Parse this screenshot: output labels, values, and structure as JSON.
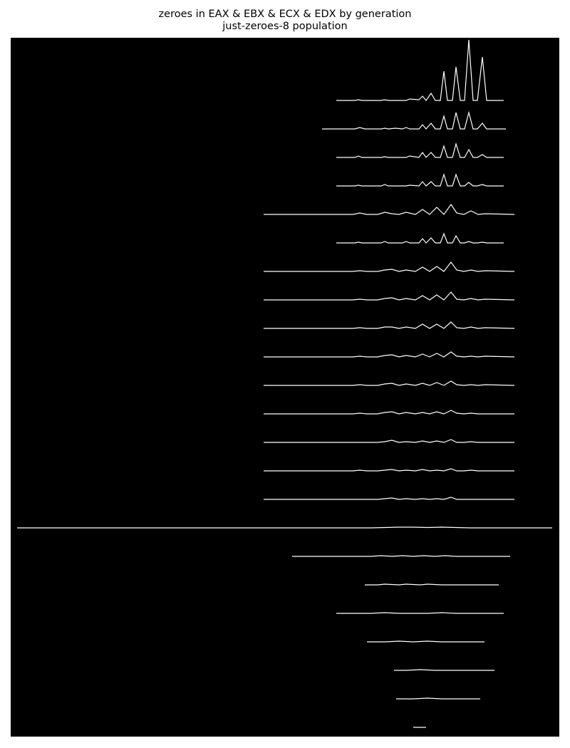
{
  "chart_data": {
    "type": "line",
    "title": "zeroes in EAX & EBX & ECX & EDX by generation",
    "subtitle": "just-zeroes-8 population",
    "xlabel": "",
    "ylabel": "",
    "background": "#000000",
    "line_color": "#ffffff",
    "grid": false,
    "legend": "none",
    "xlim": [
      0,
      800
    ],
    "ridge_spacing": 40,
    "spike_scale": 1,
    "series": [
      {
        "x": [
          472,
          498,
          503,
          508,
          535,
          540,
          545,
          570,
          575,
          588,
          593,
          598,
          605,
          611,
          618,
          623,
          628,
          635,
          640,
          646,
          652,
          658,
          664,
          670,
          677,
          683,
          707
        ],
        "y": [
          0,
          0,
          1,
          0,
          0,
          1,
          0,
          0,
          2,
          1,
          6,
          0,
          10,
          0,
          0,
          41,
          0,
          0,
          47,
          0,
          0,
          85,
          0,
          0,
          61,
          0,
          0
        ]
      },
      {
        "x": [
          452,
          498,
          505,
          512,
          535,
          540,
          545,
          555,
          565,
          570,
          575,
          588,
          593,
          598,
          605,
          611,
          618,
          623,
          628,
          635,
          640,
          646,
          652,
          658,
          664,
          670,
          677,
          683,
          710
        ],
        "y": [
          0,
          0,
          2,
          0,
          0,
          1,
          0,
          1,
          0,
          2,
          0,
          0,
          6,
          0,
          8,
          0,
          0,
          18,
          0,
          0,
          23,
          0,
          0,
          23,
          0,
          0,
          8,
          0,
          0
        ]
      },
      {
        "x": [
          472,
          498,
          503,
          508,
          535,
          540,
          545,
          570,
          575,
          588,
          593,
          598,
          605,
          611,
          618,
          623,
          628,
          635,
          640,
          646,
          652,
          658,
          664,
          670,
          677,
          683,
          707
        ],
        "y": [
          0,
          0,
          2,
          0,
          0,
          1,
          0,
          0,
          2,
          0,
          7,
          0,
          7,
          0,
          0,
          16,
          0,
          0,
          19,
          0,
          0,
          11,
          0,
          0,
          4,
          0,
          0
        ]
      },
      {
        "x": [
          472,
          498,
          503,
          508,
          535,
          540,
          545,
          570,
          575,
          588,
          593,
          598,
          605,
          611,
          618,
          623,
          628,
          635,
          640,
          646,
          652,
          658,
          664,
          670,
          677,
          683,
          707
        ],
        "y": [
          0,
          0,
          1,
          0,
          0,
          2,
          0,
          0,
          1,
          0,
          6,
          0,
          6,
          0,
          0,
          16,
          0,
          0,
          16,
          0,
          0,
          5,
          0,
          0,
          2,
          0,
          0
        ]
      },
      {
        "x": [
          370,
          495,
          505,
          515,
          530,
          540,
          550,
          560,
          570,
          583,
          593,
          603,
          613,
          623,
          633,
          641,
          651,
          661,
          671,
          681,
          722
        ],
        "y": [
          0,
          0,
          2,
          0,
          0,
          3,
          1,
          0,
          3,
          0,
          7,
          0,
          10,
          0,
          14,
          2,
          0,
          5,
          0,
          1,
          0
        ]
      },
      {
        "x": [
          472,
          498,
          503,
          508,
          535,
          540,
          545,
          565,
          570,
          575,
          588,
          593,
          598,
          605,
          611,
          618,
          623,
          628,
          635,
          640,
          646,
          652,
          658,
          664,
          670,
          677,
          683,
          707
        ],
        "y": [
          0,
          0,
          1,
          0,
          0,
          2,
          0,
          0,
          2,
          0,
          0,
          6,
          0,
          7,
          0,
          0,
          13,
          0,
          0,
          10,
          0,
          0,
          2,
          0,
          0,
          1,
          0,
          0
        ]
      },
      {
        "x": [
          370,
          495,
          505,
          515,
          530,
          540,
          550,
          560,
          570,
          583,
          593,
          603,
          613,
          623,
          633,
          641,
          651,
          661,
          671,
          681,
          722
        ],
        "y": [
          0,
          0,
          1,
          0,
          0,
          2,
          3,
          0,
          2,
          0,
          6,
          0,
          7,
          0,
          13,
          2,
          0,
          2,
          0,
          1,
          0
        ]
      },
      {
        "x": [
          370,
          495,
          505,
          515,
          530,
          540,
          550,
          560,
          570,
          583,
          593,
          603,
          613,
          623,
          633,
          641,
          651,
          661,
          671,
          681,
          722
        ],
        "y": [
          0,
          0,
          1,
          0,
          0,
          2,
          3,
          0,
          2,
          0,
          6,
          0,
          7,
          0,
          11,
          1,
          0,
          2,
          0,
          1,
          0
        ]
      },
      {
        "x": [
          370,
          495,
          505,
          515,
          530,
          540,
          550,
          560,
          570,
          583,
          593,
          603,
          613,
          623,
          633,
          641,
          651,
          661,
          671,
          681,
          722
        ],
        "y": [
          0,
          0,
          1,
          0,
          0,
          2,
          2,
          0,
          2,
          0,
          6,
          0,
          6,
          0,
          9,
          1,
          0,
          2,
          0,
          1,
          0
        ]
      },
      {
        "x": [
          370,
          495,
          505,
          515,
          530,
          540,
          550,
          560,
          570,
          583,
          593,
          603,
          613,
          623,
          633,
          641,
          651,
          661,
          671,
          681,
          722
        ],
        "y": [
          0,
          0,
          1,
          0,
          0,
          2,
          3,
          0,
          2,
          0,
          4,
          0,
          5,
          0,
          7,
          1,
          0,
          1,
          0,
          1,
          0
        ]
      },
      {
        "x": [
          370,
          495,
          505,
          515,
          530,
          540,
          550,
          560,
          570,
          583,
          593,
          603,
          613,
          623,
          633,
          641,
          651,
          661,
          671,
          681,
          722
        ],
        "y": [
          0,
          0,
          1,
          0,
          0,
          2,
          3,
          0,
          2,
          0,
          3,
          0,
          4,
          0,
          6,
          1,
          0,
          1,
          0,
          1,
          0
        ]
      },
      {
        "x": [
          370,
          495,
          505,
          515,
          530,
          540,
          550,
          560,
          570,
          583,
          593,
          603,
          613,
          623,
          633,
          641,
          651,
          661,
          671,
          681,
          722
        ],
        "y": [
          0,
          0,
          1,
          0,
          0,
          2,
          3,
          0,
          2,
          0,
          2,
          0,
          3,
          0,
          5,
          1,
          0,
          1,
          0,
          0,
          0
        ]
      },
      {
        "x": [
          370,
          495,
          505,
          515,
          530,
          540,
          550,
          560,
          570,
          583,
          593,
          603,
          613,
          623,
          633,
          641,
          651,
          661,
          671,
          681,
          722
        ],
        "y": [
          0,
          0,
          0,
          0,
          0,
          1,
          3,
          0,
          1,
          0,
          2,
          0,
          2,
          0,
          4,
          0,
          0,
          1,
          0,
          0,
          0
        ]
      },
      {
        "x": [
          370,
          495,
          505,
          515,
          530,
          540,
          550,
          560,
          570,
          583,
          593,
          603,
          613,
          623,
          633,
          641,
          651,
          661,
          671,
          681,
          722
        ],
        "y": [
          0,
          0,
          1,
          0,
          0,
          1,
          2,
          0,
          1,
          0,
          2,
          0,
          1,
          0,
          3,
          0,
          0,
          1,
          0,
          0,
          0
        ]
      },
      {
        "x": [
          370,
          495,
          505,
          515,
          530,
          540,
          550,
          560,
          570,
          583,
          593,
          603,
          613,
          623,
          633,
          641,
          651,
          661,
          671,
          681,
          722
        ],
        "y": [
          0,
          0,
          0,
          0,
          0,
          1,
          2,
          0,
          1,
          0,
          1,
          0,
          1,
          0,
          3,
          0,
          0,
          0,
          0,
          0,
          0
        ]
      },
      {
        "x": [
          24,
          500,
          520,
          540,
          560,
          580,
          600,
          620,
          640,
          660,
          700,
          775
        ],
        "y": [
          0,
          0,
          0,
          0.5,
          1,
          1,
          0.5,
          1,
          0.5,
          0,
          0,
          0
        ]
      },
      {
        "x": [
          410,
          520,
          535,
          550,
          565,
          580,
          595,
          610,
          625,
          640,
          716
        ],
        "y": [
          0,
          0,
          1,
          0,
          1,
          0,
          1,
          0,
          1,
          0,
          0
        ]
      },
      {
        "x": [
          512,
          530,
          540,
          560,
          570,
          590,
          600,
          620,
          640,
          700
        ],
        "y": [
          0,
          0,
          1,
          0,
          1,
          0,
          1,
          0,
          0,
          0
        ]
      },
      {
        "x": [
          472,
          520,
          540,
          560,
          580,
          600,
          620,
          640,
          707
        ],
        "y": [
          0,
          0,
          1,
          0,
          0,
          0,
          1,
          0,
          0
        ]
      },
      {
        "x": [
          515,
          540,
          560,
          580,
          600,
          620,
          680
        ],
        "y": [
          0,
          0,
          1,
          0,
          1,
          0,
          0
        ]
      },
      {
        "x": [
          553,
          570,
          590,
          610,
          630,
          694
        ],
        "y": [
          0,
          0,
          1,
          0,
          0,
          0
        ]
      },
      {
        "x": [
          556,
          580,
          600,
          620,
          674
        ],
        "y": [
          0,
          0,
          1,
          0,
          0
        ]
      },
      {
        "x": [
          580,
          598
        ],
        "y": [
          0,
          0
        ]
      }
    ]
  }
}
